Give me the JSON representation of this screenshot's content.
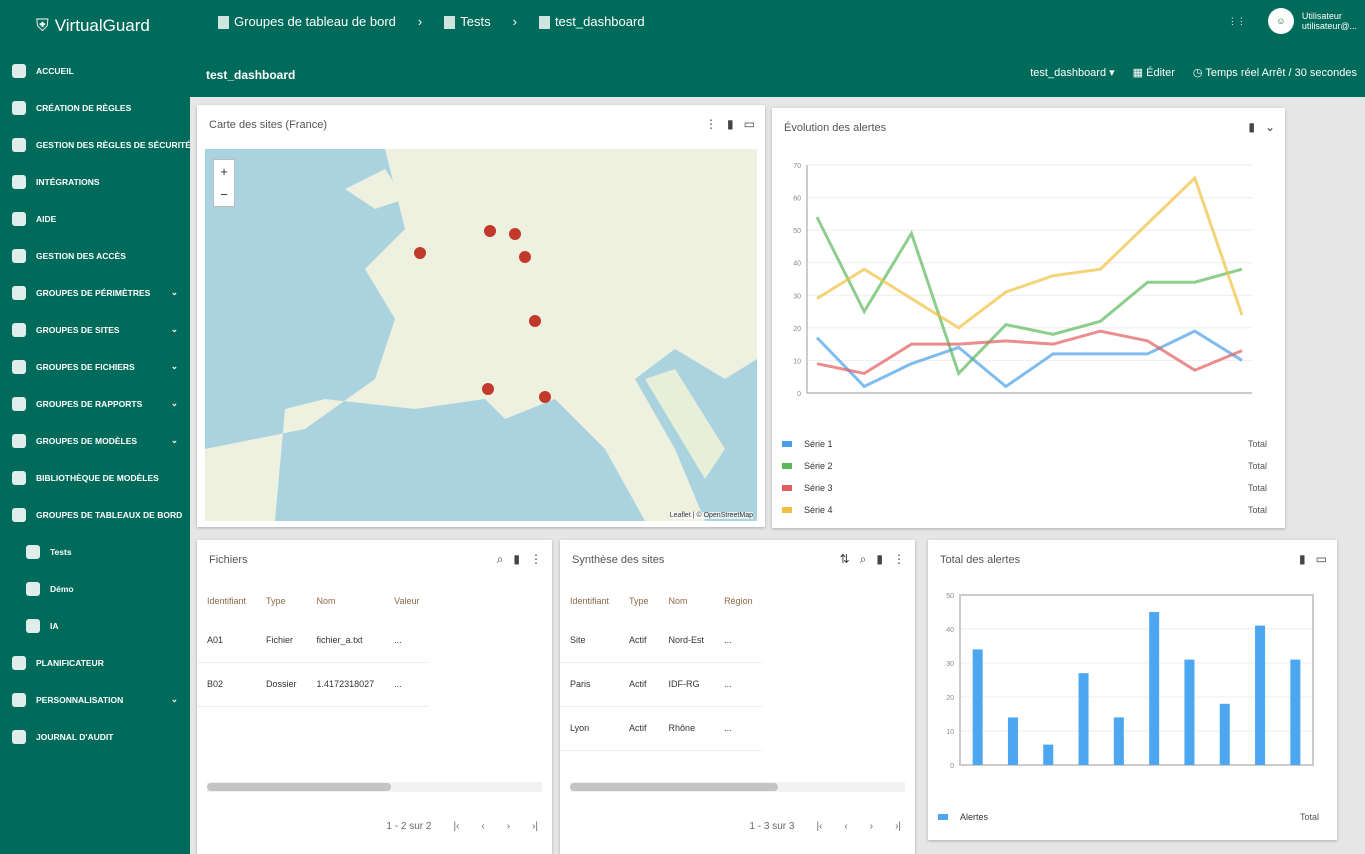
{
  "app": {
    "name": "VirtualGuard"
  },
  "sidebar": {
    "items": [
      {
        "label": "ACCUEIL",
        "icon": "home-icon"
      },
      {
        "label": "CRÉATION DE RÈGLES",
        "icon": "rules-icon"
      },
      {
        "label": "GESTION DES RÈGLES DE SÉCURITÉ",
        "icon": "tools-icon"
      },
      {
        "label": "INTÉGRATIONS",
        "icon": "integration-icon"
      },
      {
        "label": "AIDE",
        "icon": "help-icon"
      },
      {
        "label": "GESTION DES ACCÈS",
        "icon": "key-icon"
      },
      {
        "label": "GROUPES DE PÉRIMÈTRES",
        "icon": "globe-icon",
        "chevron": "⌄"
      },
      {
        "label": "GROUPES DE SITES",
        "icon": "site-icon",
        "chevron": "⌄"
      },
      {
        "label": "GROUPES DE FICHIERS",
        "icon": "file-icon",
        "chevron": "⌄"
      },
      {
        "label": "GROUPES DE RAPPORTS",
        "icon": "report-icon",
        "chevron": "⌄"
      },
      {
        "label": "GROUPES DE MODÈLES",
        "icon": "model-icon",
        "chevron": "⌄"
      },
      {
        "label": "BIBLIOTHÈQUE DE MODÈLES",
        "icon": "library-icon"
      },
      {
        "label": "GROUPES DE TABLEAUX DE BORD",
        "icon": "dashboard-icon",
        "chevron": "⌃"
      },
      {
        "label": "Tests",
        "icon": "dashboard-icon",
        "sub": true
      },
      {
        "label": "Démo",
        "icon": "dashboard-icon",
        "sub": true
      },
      {
        "label": "IA",
        "icon": "dashboard-icon",
        "sub": true
      },
      {
        "label": "PLANIFICATEUR",
        "icon": "clock-icon"
      },
      {
        "label": "PERSONNALISATION",
        "icon": "brush-icon",
        "chevron": "⌄"
      },
      {
        "label": "JOURNAL D'AUDIT",
        "icon": "audit-icon"
      }
    ]
  },
  "header": {
    "breadcrumbs": [
      "Groupes de tableau de bord",
      "Tests",
      "test_dashboard"
    ],
    "title": "test_dashboard",
    "user_name": "Utilisateur",
    "user_email": "utilisateur@...",
    "dashboard_select": "test_dashboard",
    "edit_label": "Éditer",
    "refresh_label": "Temps réel",
    "refresh_value": "Arrêt / 30 secondes"
  },
  "map_panel": {
    "title": "Carte des sites (France)",
    "zoom_in": "+",
    "zoom_out": "−",
    "attribution": "Leaflet | © OpenStreetMap"
  },
  "line_panel": {
    "title": "Évolution des alertes",
    "legend": [
      {
        "name": "Série 1",
        "color": "#4a9fe8",
        "value": "Total"
      },
      {
        "name": "Série 2",
        "color": "#5cb85c",
        "value": "Total"
      },
      {
        "name": "Série 3",
        "color": "#e35d5d",
        "value": "Total"
      },
      {
        "name": "Série 4",
        "color": "#f0c040",
        "value": "Total"
      }
    ]
  },
  "table1": {
    "title": "Fichiers",
    "headers": [
      "Identifiant",
      "Type",
      "Nom",
      "Valeur"
    ],
    "rows": [
      [
        "A01",
        "Fichier",
        "fichier_a.txt",
        "..."
      ],
      [
        "B02",
        "Dossier",
        "1.4172318027",
        "..."
      ]
    ],
    "pagination": "1 - 2 sur 2"
  },
  "table2": {
    "title": "Synthèse des sites",
    "headers": [
      "Identifiant",
      "Type",
      "Nom",
      "Région"
    ],
    "rows": [
      [
        "Site",
        "Actif",
        "Nord-Est",
        "..."
      ],
      [
        "Paris",
        "Actif",
        "IDF-RG",
        "..."
      ],
      [
        "Lyon",
        "Actif",
        "Rhône",
        "..."
      ]
    ],
    "pagination": "1 - 3 sur 3"
  },
  "bar_panel": {
    "title": "Total des alertes",
    "legend": {
      "name": "Alertes",
      "color": "#4da6f0",
      "value": "Total"
    }
  },
  "chart_data": [
    {
      "type": "line",
      "ylim": [
        0,
        70
      ],
      "series": [
        {
          "color": "#4a9fe8",
          "values": [
            17,
            2,
            9,
            14,
            2,
            12,
            12,
            12,
            19,
            10
          ]
        },
        {
          "color": "#5cb85c",
          "values": [
            54,
            25,
            49,
            6,
            21,
            18,
            22,
            34,
            34,
            38
          ]
        },
        {
          "color": "#e35d5d",
          "values": [
            9,
            6,
            15,
            15,
            16,
            15,
            19,
            16,
            7,
            13
          ]
        },
        {
          "color": "#f0c040",
          "values": [
            29,
            38,
            29,
            20,
            31,
            36,
            38,
            52,
            66,
            24
          ]
        }
      ]
    },
    {
      "type": "bar",
      "ylim": [
        0,
        50
      ],
      "values": [
        34,
        14,
        6,
        27,
        14,
        45,
        31,
        18,
        41,
        31
      ],
      "color": "#4da6f0"
    }
  ]
}
